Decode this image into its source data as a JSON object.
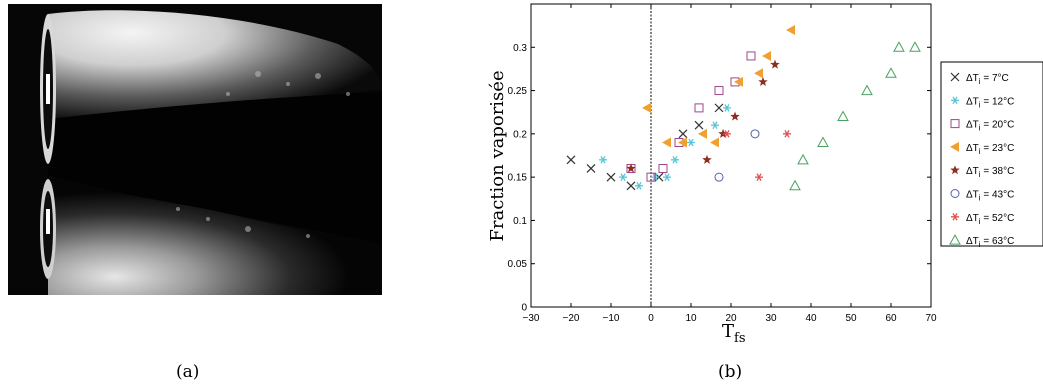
{
  "captions": {
    "a": "(a)",
    "b": "(b)"
  },
  "chart_data": {
    "type": "scatter",
    "ylabel": "Fraction vaporisée",
    "xlabel_main": "T",
    "xlabel_sub": "fs",
    "xlim": [
      -30,
      70
    ],
    "ylim": [
      0,
      0.35
    ],
    "x_ticks": [
      -30,
      -20,
      -10,
      0,
      10,
      20,
      30,
      40,
      50,
      60,
      70
    ],
    "x_tick_labels": [
      "−30",
      "−20",
      "−10",
      "0",
      "10",
      "20",
      "30",
      "40",
      "50",
      "60",
      "70"
    ],
    "y_ticks": [
      0,
      0.05,
      0.1,
      0.15,
      0.2,
      0.25,
      0.3
    ],
    "y_tick_labels": [
      "0",
      "0.05",
      "0.1",
      "0.15",
      "0.2",
      "0.25",
      "0.3"
    ],
    "vertical_reference_line_x": 0,
    "grid": false,
    "legend_position": "right, outside plot",
    "series": [
      {
        "name": "ΔT",
        "name_sub": "i",
        "name_rest": " = 7°C",
        "marker": "x",
        "color": "#333333",
        "points": [
          [
            -20,
            0.17
          ],
          [
            -15,
            0.16
          ],
          [
            -10,
            0.15
          ],
          [
            -5,
            0.14
          ],
          [
            2,
            0.15
          ],
          [
            8,
            0.2
          ],
          [
            12,
            0.21
          ],
          [
            17,
            0.23
          ]
        ]
      },
      {
        "name": "ΔT",
        "name_sub": "i",
        "name_rest": " = 12°C",
        "marker": "asterisk",
        "color": "#58c4d8",
        "points": [
          [
            -12,
            0.17
          ],
          [
            -7,
            0.15
          ],
          [
            -3,
            0.14
          ],
          [
            1,
            0.15
          ],
          [
            4,
            0.15
          ],
          [
            6,
            0.17
          ],
          [
            10,
            0.19
          ],
          [
            16,
            0.21
          ],
          [
            19,
            0.23
          ]
        ]
      },
      {
        "name": "ΔT",
        "name_sub": "i",
        "name_rest": " = 20°C",
        "marker": "square",
        "color": "#a0448c",
        "points": [
          [
            -5,
            0.16
          ],
          [
            0,
            0.15
          ],
          [
            3,
            0.16
          ],
          [
            7,
            0.19
          ],
          [
            12,
            0.23
          ],
          [
            17,
            0.25
          ],
          [
            21,
            0.26
          ],
          [
            25,
            0.29
          ]
        ]
      },
      {
        "name": "ΔT",
        "name_sub": "i",
        "name_rest": " = 23°C",
        "marker": "triangle-left",
        "color": "#f0a030",
        "points": [
          [
            -1,
            0.23
          ],
          [
            4,
            0.19
          ],
          [
            8,
            0.19
          ],
          [
            13,
            0.2
          ],
          [
            16,
            0.19
          ],
          [
            22,
            0.26
          ],
          [
            27,
            0.27
          ],
          [
            29,
            0.29
          ],
          [
            35,
            0.32
          ]
        ]
      },
      {
        "name": "ΔT",
        "name_sub": "i",
        "name_rest": " = 38°C",
        "marker": "star",
        "color": "#8b2f1e",
        "points": [
          [
            -5,
            0.16
          ],
          [
            14,
            0.17
          ],
          [
            18,
            0.2
          ],
          [
            21,
            0.22
          ],
          [
            28,
            0.26
          ],
          [
            31,
            0.28
          ]
        ]
      },
      {
        "name": "ΔT",
        "name_sub": "i",
        "name_rest": " = 43°C",
        "marker": "circle",
        "color": "#5560b0",
        "points": [
          [
            17,
            0.15
          ],
          [
            26,
            0.2
          ]
        ]
      },
      {
        "name": "ΔT",
        "name_sub": "i",
        "name_rest": " = 52°C",
        "marker": "asterisk",
        "color": "#e05050",
        "points": [
          [
            19,
            0.2
          ],
          [
            27,
            0.15
          ],
          [
            34,
            0.2
          ]
        ]
      },
      {
        "name": "ΔT",
        "name_sub": "i",
        "name_rest": " = 63°C",
        "marker": "triangle-up",
        "color": "#4aa060",
        "points": [
          [
            36,
            0.14
          ],
          [
            38,
            0.17
          ],
          [
            43,
            0.19
          ],
          [
            48,
            0.22
          ],
          [
            54,
            0.25
          ],
          [
            60,
            0.27
          ],
          [
            62,
            0.3
          ],
          [
            66,
            0.3
          ]
        ]
      }
    ]
  }
}
